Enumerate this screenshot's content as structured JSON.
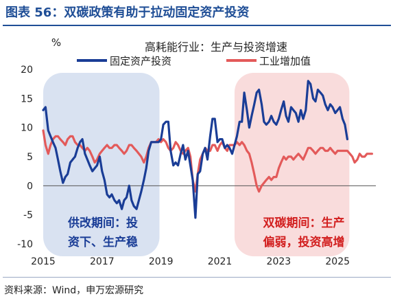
{
  "figure": {
    "title": "图表 56：双碳政策有助于拉动固定资产投资",
    "source": "资料来源：Wind，申万宏源研究"
  },
  "colors": {
    "title": "#1f4e96",
    "series_fixed": "#1a3d96",
    "series_industry": "#e35a5a",
    "shade_left": "#d9e2f1",
    "shade_right": "#f9dcdc",
    "annotation_left": "#1a3d96",
    "annotation_right": "#d21f1f"
  },
  "chart_data": {
    "type": "line",
    "title": "高耗能行业：生产与投资增速",
    "ylabel": "%",
    "ylim": [
      -10,
      20
    ],
    "yticks": [
      -10,
      -5,
      0,
      5,
      10,
      15,
      20
    ],
    "xlim": [
      2015.0,
      2026.3
    ],
    "xticks": [
      2015,
      2017,
      2019,
      2021,
      2023,
      2025
    ],
    "xtick_labels": [
      "2015",
      "2017",
      "2019",
      "2021",
      "2023",
      "2025"
    ],
    "legend_position": "top",
    "series": [
      {
        "name": "固定资产投资",
        "color": "#1a3d96",
        "points": [
          [
            2015.0,
            13
          ],
          [
            2015.08,
            13.5
          ],
          [
            2015.17,
            9.5
          ],
          [
            2015.25,
            8.5
          ],
          [
            2015.33,
            7.5
          ],
          [
            2015.42,
            6.5
          ],
          [
            2015.5,
            4.5
          ],
          [
            2015.58,
            2.5
          ],
          [
            2015.67,
            0.5
          ],
          [
            2015.75,
            1.5
          ],
          [
            2015.83,
            2
          ],
          [
            2015.92,
            4
          ],
          [
            2016.0,
            4.5
          ],
          [
            2016.08,
            5
          ],
          [
            2016.17,
            6.5
          ],
          [
            2016.25,
            7.5
          ],
          [
            2016.33,
            8
          ],
          [
            2016.42,
            5.5
          ],
          [
            2016.5,
            4.5
          ],
          [
            2016.58,
            3.5
          ],
          [
            2016.67,
            2.5
          ],
          [
            2016.75,
            3
          ],
          [
            2016.83,
            3.5
          ],
          [
            2016.92,
            5
          ],
          [
            2017.0,
            2.5
          ],
          [
            2017.08,
            1
          ],
          [
            2017.17,
            -1.5
          ],
          [
            2017.25,
            -2
          ],
          [
            2017.33,
            -1.5
          ],
          [
            2017.42,
            -2.5
          ],
          [
            2017.5,
            -3
          ],
          [
            2017.58,
            -2.5
          ],
          [
            2017.67,
            -4
          ],
          [
            2017.75,
            -2.5
          ],
          [
            2017.83,
            -2
          ],
          [
            2017.92,
            0
          ],
          [
            2018.0,
            -2.5
          ],
          [
            2018.08,
            -3.5
          ],
          [
            2018.17,
            -4
          ],
          [
            2018.25,
            -2.5
          ],
          [
            2018.33,
            -1
          ],
          [
            2018.42,
            1
          ],
          [
            2018.5,
            3
          ],
          [
            2018.58,
            6
          ],
          [
            2018.67,
            7.5
          ],
          [
            2018.75,
            7.5
          ],
          [
            2018.83,
            7.5
          ],
          [
            2018.92,
            7.5
          ],
          [
            2019.0,
            8
          ],
          [
            2019.08,
            10.5
          ],
          [
            2019.17,
            11
          ],
          [
            2019.25,
            11
          ],
          [
            2019.33,
            6
          ],
          [
            2019.42,
            3.5
          ],
          [
            2019.5,
            4
          ],
          [
            2019.58,
            3.5
          ],
          [
            2019.67,
            5.5
          ],
          [
            2019.75,
            7
          ],
          [
            2019.83,
            4.5
          ],
          [
            2019.92,
            6
          ],
          [
            2020.0,
            3.5
          ],
          [
            2020.08,
            1
          ],
          [
            2020.17,
            -5.5
          ],
          [
            2020.25,
            2
          ],
          [
            2020.33,
            2.5
          ],
          [
            2020.42,
            5.5
          ],
          [
            2020.5,
            6.5
          ],
          [
            2020.58,
            4.5
          ],
          [
            2020.67,
            8.5
          ],
          [
            2020.75,
            11.5
          ],
          [
            2020.83,
            11.5
          ],
          [
            2020.92,
            7.5
          ],
          [
            2021.0,
            8
          ],
          [
            2021.08,
            8
          ],
          [
            2021.17,
            6.5
          ],
          [
            2021.25,
            7
          ],
          [
            2021.33,
            6.5
          ],
          [
            2021.42,
            5.5
          ],
          [
            2021.5,
            7
          ],
          [
            2021.58,
            8.5
          ],
          [
            2021.67,
            11
          ],
          [
            2021.75,
            11
          ],
          [
            2021.83,
            16
          ],
          [
            2021.92,
            13
          ],
          [
            2022.0,
            10
          ],
          [
            2022.08,
            12
          ],
          [
            2022.17,
            14
          ],
          [
            2022.25,
            16
          ],
          [
            2022.33,
            16.5
          ],
          [
            2022.42,
            14
          ],
          [
            2022.5,
            11
          ],
          [
            2022.58,
            10.5
          ],
          [
            2022.67,
            11
          ],
          [
            2022.75,
            12
          ],
          [
            2022.83,
            11
          ],
          [
            2022.92,
            10.5
          ],
          [
            2023.0,
            11.5
          ],
          [
            2023.08,
            13
          ],
          [
            2023.17,
            14.5
          ],
          [
            2023.25,
            12
          ],
          [
            2023.33,
            11
          ],
          [
            2023.42,
            13.5
          ],
          [
            2023.5,
            13
          ],
          [
            2023.58,
            12.5
          ],
          [
            2023.67,
            11
          ],
          [
            2023.75,
            13
          ],
          [
            2023.83,
            11.5
          ],
          [
            2023.92,
            13
          ],
          [
            2024.0,
            18
          ],
          [
            2024.08,
            17.5
          ],
          [
            2024.17,
            15
          ],
          [
            2024.25,
            14.5
          ],
          [
            2024.33,
            16.5
          ],
          [
            2024.42,
            16
          ],
          [
            2024.5,
            15.5
          ],
          [
            2024.58,
            14
          ],
          [
            2024.67,
            13
          ],
          [
            2024.75,
            14
          ],
          [
            2024.83,
            13.5
          ],
          [
            2024.92,
            12.5
          ],
          [
            2025.0,
            13
          ],
          [
            2025.08,
            13.5
          ],
          [
            2025.17,
            11.5
          ],
          [
            2025.25,
            10.5
          ],
          [
            2025.33,
            8
          ]
        ]
      },
      {
        "name": "工业增加值",
        "color": "#e35a5a",
        "points": [
          [
            2015.0,
            9.5
          ],
          [
            2015.08,
            7
          ],
          [
            2015.17,
            5.5
          ],
          [
            2015.25,
            7
          ],
          [
            2015.33,
            8
          ],
          [
            2015.42,
            8.5
          ],
          [
            2015.5,
            8.5
          ],
          [
            2015.58,
            8
          ],
          [
            2015.67,
            7.5
          ],
          [
            2015.75,
            7
          ],
          [
            2015.83,
            8
          ],
          [
            2015.92,
            8.5
          ],
          [
            2016.0,
            8.5
          ],
          [
            2016.08,
            7.5
          ],
          [
            2016.17,
            7
          ],
          [
            2016.25,
            7
          ],
          [
            2016.33,
            6.5
          ],
          [
            2016.42,
            6
          ],
          [
            2016.5,
            6.5
          ],
          [
            2016.58,
            6
          ],
          [
            2016.67,
            5
          ],
          [
            2016.75,
            4
          ],
          [
            2016.83,
            4.5
          ],
          [
            2016.92,
            5.5
          ],
          [
            2017.0,
            6
          ],
          [
            2017.08,
            6.5
          ],
          [
            2017.17,
            7
          ],
          [
            2017.25,
            6.5
          ],
          [
            2017.33,
            6.5
          ],
          [
            2017.42,
            7
          ],
          [
            2017.5,
            7
          ],
          [
            2017.58,
            6.5
          ],
          [
            2017.67,
            6
          ],
          [
            2017.75,
            5.5
          ],
          [
            2017.83,
            6
          ],
          [
            2017.92,
            7
          ],
          [
            2018.0,
            7
          ],
          [
            2018.08,
            6.5
          ],
          [
            2018.17,
            6
          ],
          [
            2018.25,
            5.5
          ],
          [
            2018.33,
            5
          ],
          [
            2018.42,
            4
          ],
          [
            2018.5,
            5
          ],
          [
            2018.58,
            6.5
          ],
          [
            2018.67,
            7.5
          ],
          [
            2018.75,
            7.5
          ],
          [
            2018.83,
            7.5
          ],
          [
            2018.92,
            8
          ],
          [
            2019.0,
            7.5
          ],
          [
            2019.08,
            8
          ],
          [
            2019.17,
            7.5
          ],
          [
            2019.25,
            6.5
          ],
          [
            2019.33,
            6
          ],
          [
            2019.42,
            6.5
          ],
          [
            2019.5,
            7.5
          ],
          [
            2019.58,
            7
          ],
          [
            2019.67,
            6
          ],
          [
            2019.75,
            5.5
          ],
          [
            2019.83,
            6
          ],
          [
            2019.92,
            6.5
          ],
          [
            2020.0,
            5
          ],
          [
            2020.08,
            1
          ],
          [
            2020.17,
            -1
          ],
          [
            2020.25,
            2
          ],
          [
            2020.33,
            4.5
          ],
          [
            2020.42,
            5.5
          ],
          [
            2020.5,
            6.5
          ],
          [
            2020.58,
            6
          ],
          [
            2020.67,
            6
          ],
          [
            2020.75,
            7
          ],
          [
            2020.83,
            7
          ],
          [
            2020.92,
            6
          ],
          [
            2021.0,
            7
          ],
          [
            2021.08,
            7.5
          ],
          [
            2021.17,
            6.5
          ],
          [
            2021.25,
            6
          ],
          [
            2021.33,
            7
          ],
          [
            2021.42,
            7
          ],
          [
            2021.5,
            7
          ],
          [
            2021.58,
            7.5
          ],
          [
            2021.67,
            7
          ],
          [
            2021.75,
            7.5
          ],
          [
            2021.83,
            7
          ],
          [
            2021.92,
            6
          ],
          [
            2022.0,
            5.5
          ],
          [
            2022.08,
            4
          ],
          [
            2022.17,
            2
          ],
          [
            2022.25,
            0
          ],
          [
            2022.33,
            -1
          ],
          [
            2022.42,
            0
          ],
          [
            2022.5,
            0.5
          ],
          [
            2022.58,
            1
          ],
          [
            2022.67,
            1.5
          ],
          [
            2022.75,
            1
          ],
          [
            2022.83,
            1.5
          ],
          [
            2022.92,
            1.5
          ],
          [
            2023.0,
            3
          ],
          [
            2023.08,
            4
          ],
          [
            2023.17,
            5
          ],
          [
            2023.25,
            4.5
          ],
          [
            2023.33,
            5
          ],
          [
            2023.42,
            5
          ],
          [
            2023.5,
            4.5
          ],
          [
            2023.58,
            5
          ],
          [
            2023.67,
            5.5
          ],
          [
            2023.75,
            5
          ],
          [
            2023.83,
            4.5
          ],
          [
            2023.92,
            5.5
          ],
          [
            2024.0,
            6.5
          ],
          [
            2024.08,
            6.5
          ],
          [
            2024.17,
            6
          ],
          [
            2024.25,
            5.5
          ],
          [
            2024.33,
            6
          ],
          [
            2024.42,
            6.5
          ],
          [
            2024.5,
            6.5
          ],
          [
            2024.58,
            6
          ],
          [
            2024.67,
            6
          ],
          [
            2024.75,
            6.5
          ],
          [
            2024.83,
            6
          ],
          [
            2024.92,
            5.5
          ],
          [
            2025.0,
            6
          ],
          [
            2025.08,
            6
          ],
          [
            2025.17,
            6
          ],
          [
            2025.25,
            6
          ],
          [
            2025.33,
            6
          ],
          [
            2025.42,
            5.5
          ],
          [
            2025.5,
            5
          ],
          [
            2025.58,
            4
          ],
          [
            2025.67,
            4.5
          ],
          [
            2025.75,
            5.5
          ],
          [
            2025.83,
            5
          ],
          [
            2025.92,
            5
          ],
          [
            2026.0,
            5.5
          ],
          [
            2026.08,
            5.5
          ],
          [
            2026.17,
            5.5
          ]
        ]
      }
    ],
    "shaded_regions": [
      {
        "name": "供改期间",
        "start": 2015.0,
        "end": 2018.95,
        "label_lines": [
          "供改期间：投",
          "资下、生产稳"
        ]
      },
      {
        "name": "双碳期间",
        "start": 2021.5,
        "end": 2025.4,
        "label_lines": [
          "双碳期间：生产",
          "偏弱，投资高增"
        ]
      }
    ]
  }
}
